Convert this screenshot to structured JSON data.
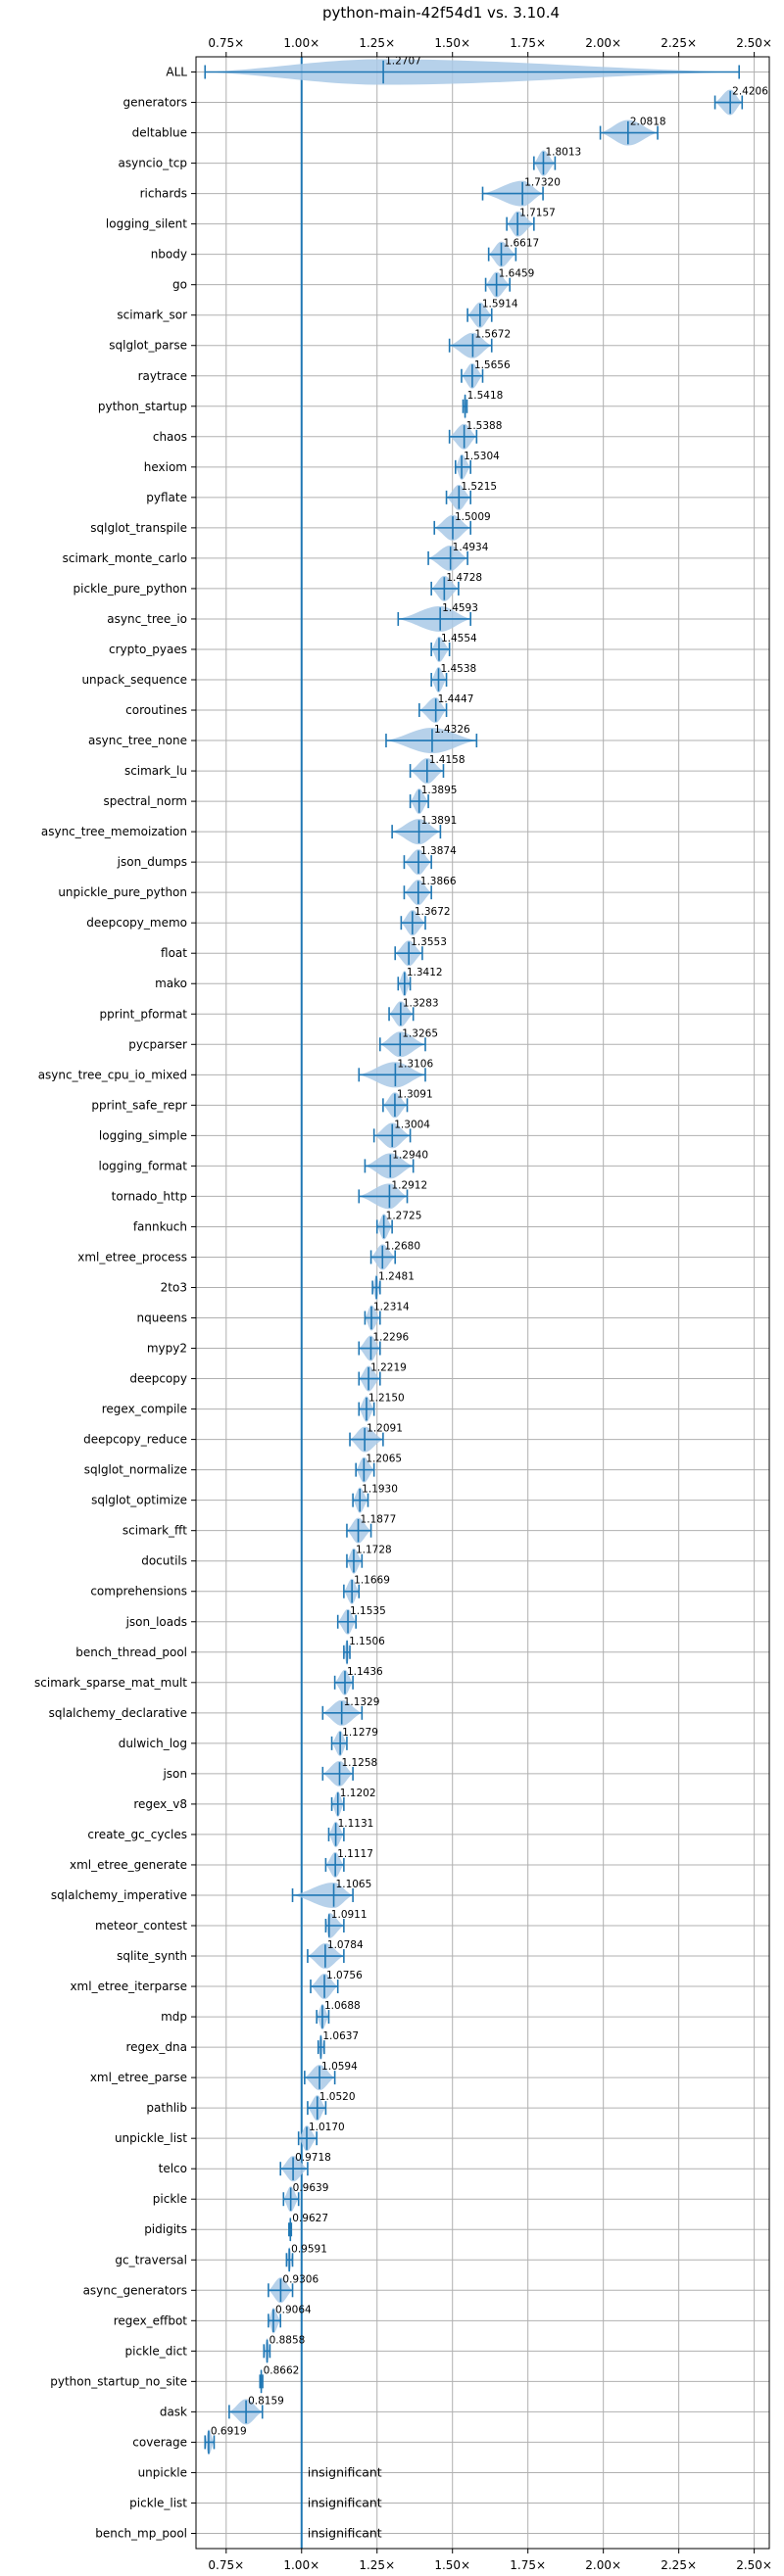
{
  "chart_data": {
    "type": "violin",
    "title": "python-main-42f54d1 vs. 3.10.4",
    "xlabel": "",
    "ylabel": "",
    "xlim": [
      0.65,
      2.55
    ],
    "xticks": [
      0.75,
      1.0,
      1.25,
      1.5,
      1.75,
      2.0,
      2.25,
      2.5
    ],
    "xtick_labels": [
      "0.75×",
      "1.00×",
      "1.25×",
      "1.50×",
      "1.75×",
      "2.00×",
      "2.25×",
      "2.50×"
    ],
    "reference_line": 1.0,
    "grid": true,
    "color": "#1f77b4",
    "violin_color": "#a9c9e6",
    "insignificant_label": "insignificant",
    "benchmarks": [
      {
        "name": "ALL",
        "value": 1.2707,
        "label": "1.2707",
        "min": 0.68,
        "max": 2.45
      },
      {
        "name": "generators",
        "value": 2.4206,
        "label": "2.4206",
        "min": 2.37,
        "max": 2.46
      },
      {
        "name": "deltablue",
        "value": 2.0818,
        "label": "2.0818",
        "min": 1.99,
        "max": 2.18
      },
      {
        "name": "asyncio_tcp",
        "value": 1.8013,
        "label": "1.8013",
        "min": 1.77,
        "max": 1.84
      },
      {
        "name": "richards",
        "value": 1.732,
        "label": "1.7320",
        "min": 1.6,
        "max": 1.8
      },
      {
        "name": "logging_silent",
        "value": 1.7157,
        "label": "1.7157",
        "min": 1.68,
        "max": 1.77
      },
      {
        "name": "nbody",
        "value": 1.6617,
        "label": "1.6617",
        "min": 1.62,
        "max": 1.71
      },
      {
        "name": "go",
        "value": 1.6459,
        "label": "1.6459",
        "min": 1.61,
        "max": 1.69
      },
      {
        "name": "scimark_sor",
        "value": 1.5914,
        "label": "1.5914",
        "min": 1.55,
        "max": 1.63
      },
      {
        "name": "sqlglot_parse",
        "value": 1.5672,
        "label": "1.5672",
        "min": 1.49,
        "max": 1.63
      },
      {
        "name": "raytrace",
        "value": 1.5656,
        "label": "1.5656",
        "min": 1.53,
        "max": 1.6
      },
      {
        "name": "python_startup",
        "value": 1.5418,
        "label": "1.5418",
        "min": 1.535,
        "max": 1.548
      },
      {
        "name": "chaos",
        "value": 1.5388,
        "label": "1.5388",
        "min": 1.49,
        "max": 1.58
      },
      {
        "name": "hexiom",
        "value": 1.5304,
        "label": "1.5304",
        "min": 1.51,
        "max": 1.56
      },
      {
        "name": "pyflate",
        "value": 1.5215,
        "label": "1.5215",
        "min": 1.48,
        "max": 1.56
      },
      {
        "name": "sqlglot_transpile",
        "value": 1.5009,
        "label": "1.5009",
        "min": 1.44,
        "max": 1.56
      },
      {
        "name": "scimark_monte_carlo",
        "value": 1.4934,
        "label": "1.4934",
        "min": 1.42,
        "max": 1.55
      },
      {
        "name": "pickle_pure_python",
        "value": 1.4728,
        "label": "1.4728",
        "min": 1.43,
        "max": 1.52
      },
      {
        "name": "async_tree_io",
        "value": 1.4593,
        "label": "1.4593",
        "min": 1.32,
        "max": 1.56
      },
      {
        "name": "crypto_pyaes",
        "value": 1.4554,
        "label": "1.4554",
        "min": 1.43,
        "max": 1.49
      },
      {
        "name": "unpack_sequence",
        "value": 1.4538,
        "label": "1.4538",
        "min": 1.43,
        "max": 1.48
      },
      {
        "name": "coroutines",
        "value": 1.4447,
        "label": "1.4447",
        "min": 1.39,
        "max": 1.48
      },
      {
        "name": "async_tree_none",
        "value": 1.4326,
        "label": "1.4326",
        "min": 1.28,
        "max": 1.58
      },
      {
        "name": "scimark_lu",
        "value": 1.4158,
        "label": "1.4158",
        "min": 1.36,
        "max": 1.47
      },
      {
        "name": "spectral_norm",
        "value": 1.3895,
        "label": "1.3895",
        "min": 1.36,
        "max": 1.42
      },
      {
        "name": "async_tree_memoization",
        "value": 1.3891,
        "label": "1.3891",
        "min": 1.3,
        "max": 1.46
      },
      {
        "name": "json_dumps",
        "value": 1.3874,
        "label": "1.3874",
        "min": 1.34,
        "max": 1.43
      },
      {
        "name": "unpickle_pure_python",
        "value": 1.3866,
        "label": "1.3866",
        "min": 1.34,
        "max": 1.43
      },
      {
        "name": "deepcopy_memo",
        "value": 1.3672,
        "label": "1.3672",
        "min": 1.33,
        "max": 1.41
      },
      {
        "name": "float",
        "value": 1.3553,
        "label": "1.3553",
        "min": 1.31,
        "max": 1.4
      },
      {
        "name": "mako",
        "value": 1.3412,
        "label": "1.3412",
        "min": 1.32,
        "max": 1.36
      },
      {
        "name": "pprint_pformat",
        "value": 1.3283,
        "label": "1.3283",
        "min": 1.29,
        "max": 1.37
      },
      {
        "name": "pycparser",
        "value": 1.3265,
        "label": "1.3265",
        "min": 1.26,
        "max": 1.41
      },
      {
        "name": "async_tree_cpu_io_mixed",
        "value": 1.3106,
        "label": "1.3106",
        "min": 1.19,
        "max": 1.41
      },
      {
        "name": "pprint_safe_repr",
        "value": 1.3091,
        "label": "1.3091",
        "min": 1.27,
        "max": 1.35
      },
      {
        "name": "logging_simple",
        "value": 1.3004,
        "label": "1.3004",
        "min": 1.24,
        "max": 1.36
      },
      {
        "name": "logging_format",
        "value": 1.294,
        "label": "1.2940",
        "min": 1.21,
        "max": 1.37
      },
      {
        "name": "tornado_http",
        "value": 1.2912,
        "label": "1.2912",
        "min": 1.19,
        "max": 1.35
      },
      {
        "name": "fannkuch",
        "value": 1.2725,
        "label": "1.2725",
        "min": 1.25,
        "max": 1.3
      },
      {
        "name": "xml_etree_process",
        "value": 1.268,
        "label": "1.2680",
        "min": 1.23,
        "max": 1.31
      },
      {
        "name": "2to3",
        "value": 1.2481,
        "label": "1.2481",
        "min": 1.235,
        "max": 1.26
      },
      {
        "name": "nqueens",
        "value": 1.2314,
        "label": "1.2314",
        "min": 1.21,
        "max": 1.26
      },
      {
        "name": "mypy2",
        "value": 1.2296,
        "label": "1.2296",
        "min": 1.19,
        "max": 1.26
      },
      {
        "name": "deepcopy",
        "value": 1.2219,
        "label": "1.2219",
        "min": 1.19,
        "max": 1.26
      },
      {
        "name": "regex_compile",
        "value": 1.215,
        "label": "1.2150",
        "min": 1.19,
        "max": 1.24
      },
      {
        "name": "deepcopy_reduce",
        "value": 1.2091,
        "label": "1.2091",
        "min": 1.16,
        "max": 1.27
      },
      {
        "name": "sqlglot_normalize",
        "value": 1.2065,
        "label": "1.2065",
        "min": 1.18,
        "max": 1.24
      },
      {
        "name": "sqlglot_optimize",
        "value": 1.193,
        "label": "1.1930",
        "min": 1.17,
        "max": 1.22
      },
      {
        "name": "scimark_fft",
        "value": 1.1877,
        "label": "1.1877",
        "min": 1.15,
        "max": 1.23
      },
      {
        "name": "docutils",
        "value": 1.1728,
        "label": "1.1728",
        "min": 1.15,
        "max": 1.2
      },
      {
        "name": "comprehensions",
        "value": 1.1669,
        "label": "1.1669",
        "min": 1.14,
        "max": 1.19
      },
      {
        "name": "json_loads",
        "value": 1.1535,
        "label": "1.1535",
        "min": 1.12,
        "max": 1.18
      },
      {
        "name": "bench_thread_pool",
        "value": 1.1506,
        "label": "1.1506",
        "min": 1.14,
        "max": 1.16
      },
      {
        "name": "scimark_sparse_mat_mult",
        "value": 1.1436,
        "label": "1.1436",
        "min": 1.11,
        "max": 1.17
      },
      {
        "name": "sqlalchemy_declarative",
        "value": 1.1329,
        "label": "1.1329",
        "min": 1.07,
        "max": 1.2
      },
      {
        "name": "dulwich_log",
        "value": 1.1279,
        "label": "1.1279",
        "min": 1.1,
        "max": 1.15
      },
      {
        "name": "json",
        "value": 1.1258,
        "label": "1.1258",
        "min": 1.07,
        "max": 1.17
      },
      {
        "name": "regex_v8",
        "value": 1.1202,
        "label": "1.1202",
        "min": 1.1,
        "max": 1.14
      },
      {
        "name": "create_gc_cycles",
        "value": 1.1131,
        "label": "1.1131",
        "min": 1.09,
        "max": 1.14
      },
      {
        "name": "xml_etree_generate",
        "value": 1.1117,
        "label": "1.1117",
        "min": 1.08,
        "max": 1.14
      },
      {
        "name": "sqlalchemy_imperative",
        "value": 1.1065,
        "label": "1.1065",
        "min": 0.97,
        "max": 1.17
      },
      {
        "name": "meteor_contest",
        "value": 1.0911,
        "label": "1.0911",
        "min": 1.08,
        "max": 1.14
      },
      {
        "name": "sqlite_synth",
        "value": 1.0784,
        "label": "1.0784",
        "min": 1.02,
        "max": 1.14
      },
      {
        "name": "xml_etree_iterparse",
        "value": 1.0756,
        "label": "1.0756",
        "min": 1.03,
        "max": 1.12
      },
      {
        "name": "mdp",
        "value": 1.0688,
        "label": "1.0688",
        "min": 1.05,
        "max": 1.09
      },
      {
        "name": "regex_dna",
        "value": 1.0637,
        "label": "1.0637",
        "min": 1.055,
        "max": 1.075
      },
      {
        "name": "xml_etree_parse",
        "value": 1.0594,
        "label": "1.0594",
        "min": 1.01,
        "max": 1.11
      },
      {
        "name": "pathlib",
        "value": 1.052,
        "label": "1.0520",
        "min": 1.02,
        "max": 1.08
      },
      {
        "name": "unpickle_list",
        "value": 1.017,
        "label": "1.0170",
        "min": 0.99,
        "max": 1.05
      },
      {
        "name": "telco",
        "value": 0.9718,
        "label": "0.9718",
        "min": 0.93,
        "max": 1.02
      },
      {
        "name": "pickle",
        "value": 0.9639,
        "label": "0.9639",
        "min": 0.94,
        "max": 0.99
      },
      {
        "name": "pidigits",
        "value": 0.9627,
        "label": "0.9627",
        "min": 0.958,
        "max": 0.966
      },
      {
        "name": "gc_traversal",
        "value": 0.9591,
        "label": "0.9591",
        "min": 0.95,
        "max": 0.97
      },
      {
        "name": "async_generators",
        "value": 0.9306,
        "label": "0.9306",
        "min": 0.89,
        "max": 0.97
      },
      {
        "name": "regex_effbot",
        "value": 0.9064,
        "label": "0.9064",
        "min": 0.89,
        "max": 0.93
      },
      {
        "name": "pickle_dict",
        "value": 0.8858,
        "label": "0.8858",
        "min": 0.875,
        "max": 0.895
      },
      {
        "name": "python_startup_no_site",
        "value": 0.8662,
        "label": "0.8662",
        "min": 0.862,
        "max": 0.871
      },
      {
        "name": "dask",
        "value": 0.8159,
        "label": "0.8159",
        "min": 0.76,
        "max": 0.87
      },
      {
        "name": "coverage",
        "value": 0.6919,
        "label": "0.6919",
        "min": 0.68,
        "max": 0.71
      },
      {
        "name": "unpickle",
        "value": null,
        "label": "insignificant"
      },
      {
        "name": "pickle_list",
        "value": null,
        "label": "insignificant"
      },
      {
        "name": "bench_mp_pool",
        "value": null,
        "label": "insignificant"
      }
    ]
  }
}
